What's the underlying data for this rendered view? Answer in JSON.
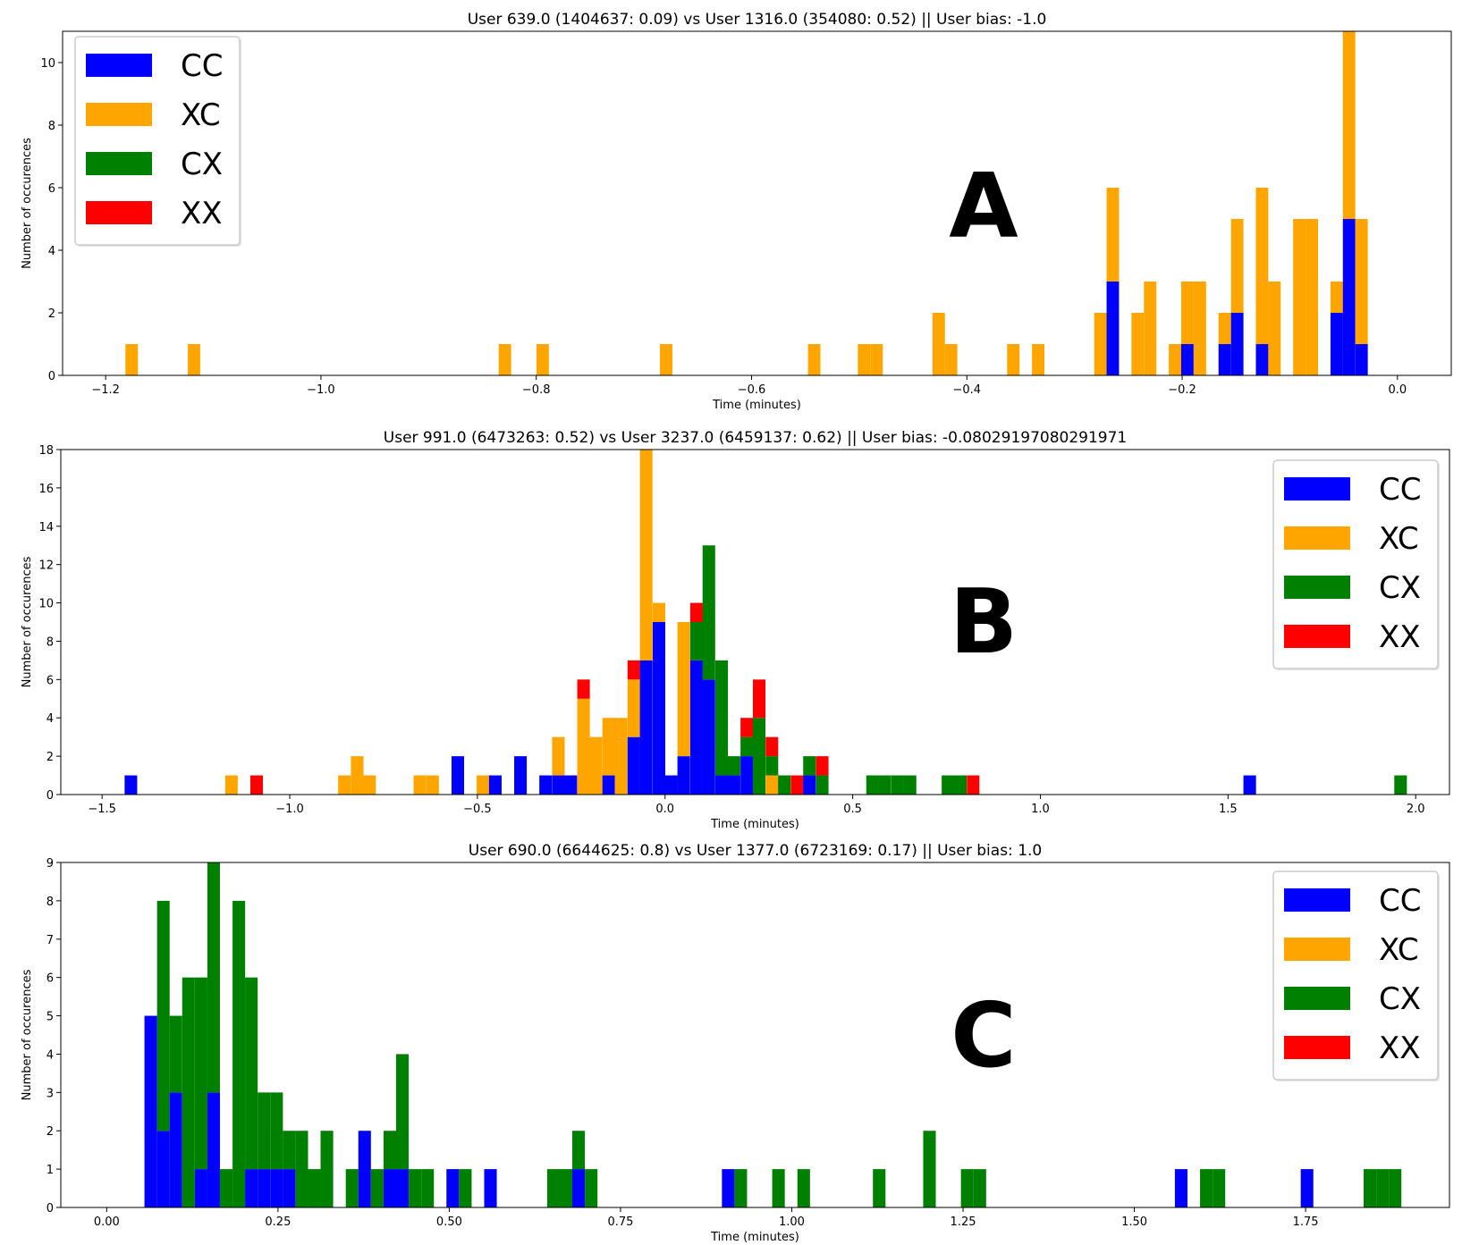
{
  "colors": {
    "CC": "#0000ff",
    "XC": "#ffa500",
    "CX": "#008000",
    "XX": "#ff0000"
  },
  "chart_data": [
    {
      "type": "bar",
      "stacked": true,
      "panel_label": "A",
      "title": "User 639.0 (1404637: 0.09) vs User 1316.0 (354080: 0.52) || User bias: -1.0",
      "xlabel": "Time (minutes)",
      "ylabel": "Number of occurences",
      "xlim": [
        -1.24,
        0.05
      ],
      "ylim": [
        0,
        11
      ],
      "xticks": [
        -1.2,
        -1.0,
        -0.8,
        -0.6,
        -0.4,
        -0.2,
        0.0
      ],
      "xtick_labels": [
        "−1.2",
        "−1.0",
        "−0.8",
        "−0.6",
        "−0.4",
        "−0.2",
        "0.0"
      ],
      "yticks": [
        0,
        2,
        4,
        6,
        8,
        10
      ],
      "ytick_labels": [
        "0",
        "2",
        "4",
        "6",
        "8",
        "10"
      ],
      "legend": {
        "position": "upper left",
        "entries": [
          "CC",
          "XC",
          "CX",
          "XX"
        ]
      },
      "bin_width": 0.01155,
      "series_order": [
        "CC",
        "XC",
        "CX",
        "XX"
      ],
      "bins": [
        {
          "x": -1.1816,
          "CC": 0,
          "XC": 1,
          "CX": 0,
          "XX": 0
        },
        {
          "x": -1.1237,
          "CC": 0,
          "XC": 1,
          "CX": 0,
          "XX": 0
        },
        {
          "x": -0.8349,
          "CC": 0,
          "XC": 1,
          "CX": 0,
          "XX": 0
        },
        {
          "x": -0.7998,
          "CC": 0,
          "XC": 1,
          "CX": 0,
          "XX": 0
        },
        {
          "x": -0.6851,
          "CC": 0,
          "XC": 1,
          "CX": 0,
          "XX": 0
        },
        {
          "x": -0.5476,
          "CC": 0,
          "XC": 1,
          "CX": 0,
          "XX": 0
        },
        {
          "x": -0.5013,
          "CC": 0,
          "XC": 1,
          "CX": 0,
          "XX": 0
        },
        {
          "x": -0.4897,
          "CC": 0,
          "XC": 1,
          "CX": 0,
          "XX": 0
        },
        {
          "x": -0.4319,
          "CC": 0,
          "XC": 2,
          "CX": 0,
          "XX": 0
        },
        {
          "x": -0.4204,
          "CC": 0,
          "XC": 1,
          "CX": 0,
          "XX": 0
        },
        {
          "x": -0.3626,
          "CC": 0,
          "XC": 1,
          "CX": 0,
          "XX": 0
        },
        {
          "x": -0.3395,
          "CC": 0,
          "XC": 1,
          "CX": 0,
          "XX": 0
        },
        {
          "x": -0.2817,
          "CC": 0,
          "XC": 2,
          "CX": 0,
          "XX": 0
        },
        {
          "x": -0.2702,
          "CC": 3,
          "XC": 3,
          "CX": 0,
          "XX": 0
        },
        {
          "x": -0.2471,
          "CC": 0,
          "XC": 2,
          "CX": 0,
          "XX": 0
        },
        {
          "x": -0.2355,
          "CC": 0,
          "XC": 3,
          "CX": 0,
          "XX": 0
        },
        {
          "x": -0.2124,
          "CC": 0,
          "XC": 1,
          "CX": 0,
          "XX": 0
        },
        {
          "x": -0.2009,
          "CC": 1,
          "XC": 2,
          "CX": 0,
          "XX": 0
        },
        {
          "x": -0.1893,
          "CC": 0,
          "XC": 3,
          "CX": 0,
          "XX": 0
        },
        {
          "x": -0.1662,
          "CC": 1,
          "XC": 1,
          "CX": 0,
          "XX": 0
        },
        {
          "x": -0.1546,
          "CC": 2,
          "XC": 3,
          "CX": 0,
          "XX": 0
        },
        {
          "x": -0.1315,
          "CC": 1,
          "XC": 5,
          "CX": 0,
          "XX": 0
        },
        {
          "x": -0.12,
          "CC": 0,
          "XC": 3,
          "CX": 0,
          "XX": 0
        },
        {
          "x": -0.0969,
          "CC": 0,
          "XC": 5,
          "CX": 0,
          "XX": 0
        },
        {
          "x": -0.0853,
          "CC": 0,
          "XC": 5,
          "CX": 0,
          "XX": 0
        },
        {
          "x": -0.0622,
          "CC": 2,
          "XC": 1,
          "CX": 0,
          "XX": 0
        },
        {
          "x": -0.0507,
          "CC": 5,
          "XC": 6,
          "CX": 0,
          "XX": 0
        },
        {
          "x": -0.0391,
          "CC": 1,
          "XC": 4,
          "CX": 0,
          "XX": 0
        }
      ]
    },
    {
      "type": "bar",
      "stacked": true,
      "panel_label": "B",
      "title": "User 991.0 (6473263: 0.52) vs User 3237.0 (6459137: 0.62) || User bias: -0.08029197080291971",
      "xlabel": "Time (minutes)",
      "ylabel": "Number of occurences",
      "xlim": [
        -1.61,
        2.09
      ],
      "ylim": [
        0,
        18
      ],
      "xticks": [
        -1.5,
        -1.0,
        -0.5,
        0.0,
        0.5,
        1.0,
        1.5,
        2.0
      ],
      "xtick_labels": [
        "−1.5",
        "−1.0",
        "−0.5",
        "0.0",
        "0.5",
        "1.0",
        "1.5",
        "2.0"
      ],
      "yticks": [
        0,
        2,
        4,
        6,
        8,
        10,
        12,
        14,
        16,
        18
      ],
      "ytick_labels": [
        "0",
        "2",
        "4",
        "6",
        "8",
        "10",
        "12",
        "14",
        "16",
        "18"
      ],
      "legend": {
        "position": "upper right",
        "entries": [
          "CC",
          "XC",
          "CX",
          "XX"
        ]
      },
      "bin_width": 0.0335,
      "series_order": [
        "CC",
        "XC",
        "CX",
        "XX"
      ],
      "bins": [
        {
          "x": -1.44,
          "CC": 1,
          "XC": 0,
          "CX": 0,
          "XX": 0
        },
        {
          "x": -1.172,
          "CC": 0,
          "XC": 1,
          "CX": 0,
          "XX": 0
        },
        {
          "x": -1.105,
          "CC": 0,
          "XC": 0,
          "CX": 0,
          "XX": 1
        },
        {
          "x": -0.871,
          "CC": 0,
          "XC": 1,
          "CX": 0,
          "XX": 0
        },
        {
          "x": -0.837,
          "CC": 0,
          "XC": 2,
          "CX": 0,
          "XX": 0
        },
        {
          "x": -0.804,
          "CC": 0,
          "XC": 1,
          "CX": 0,
          "XX": 0
        },
        {
          "x": -0.67,
          "CC": 0,
          "XC": 1,
          "CX": 0,
          "XX": 0
        },
        {
          "x": -0.636,
          "CC": 0,
          "XC": 1,
          "CX": 0,
          "XX": 0
        },
        {
          "x": -0.569,
          "CC": 2,
          "XC": 0,
          "CX": 0,
          "XX": 0
        },
        {
          "x": -0.502,
          "CC": 0,
          "XC": 1,
          "CX": 0,
          "XX": 0
        },
        {
          "x": -0.469,
          "CC": 1,
          "XC": 0,
          "CX": 0,
          "XX": 0
        },
        {
          "x": -0.402,
          "CC": 2,
          "XC": 0,
          "CX": 0,
          "XX": 0
        },
        {
          "x": -0.335,
          "CC": 1,
          "XC": 0,
          "CX": 0,
          "XX": 0
        },
        {
          "x": -0.301,
          "CC": 1,
          "XC": 2,
          "CX": 0,
          "XX": 0
        },
        {
          "x": -0.268,
          "CC": 1,
          "XC": 0,
          "CX": 0,
          "XX": 0
        },
        {
          "x": -0.234,
          "CC": 0,
          "XC": 5,
          "CX": 0,
          "XX": 1
        },
        {
          "x": -0.201,
          "CC": 0,
          "XC": 3,
          "CX": 0,
          "XX": 0
        },
        {
          "x": -0.167,
          "CC": 1,
          "XC": 3,
          "CX": 0,
          "XX": 0
        },
        {
          "x": -0.134,
          "CC": 0,
          "XC": 4,
          "CX": 0,
          "XX": 0
        },
        {
          "x": -0.1,
          "CC": 3,
          "XC": 3,
          "CX": 0,
          "XX": 1
        },
        {
          "x": -0.067,
          "CC": 7,
          "XC": 11,
          "CX": 0,
          "XX": 0
        },
        {
          "x": -0.033,
          "CC": 9,
          "XC": 1,
          "CX": 0,
          "XX": 0
        },
        {
          "x": 0.0,
          "CC": 1,
          "XC": 0,
          "CX": 0,
          "XX": 0
        },
        {
          "x": 0.033,
          "CC": 2,
          "XC": 7,
          "CX": 0,
          "XX": 0
        },
        {
          "x": 0.067,
          "CC": 7,
          "XC": 0,
          "CX": 2,
          "XX": 1
        },
        {
          "x": 0.1,
          "CC": 6,
          "XC": 0,
          "CX": 7,
          "XX": 0
        },
        {
          "x": 0.134,
          "CC": 1,
          "XC": 0,
          "CX": 6,
          "XX": 0
        },
        {
          "x": 0.167,
          "CC": 1,
          "XC": 0,
          "CX": 1,
          "XX": 0
        },
        {
          "x": 0.201,
          "CC": 2,
          "XC": 0,
          "CX": 1,
          "XX": 1
        },
        {
          "x": 0.234,
          "CC": 0,
          "XC": 0,
          "CX": 4,
          "XX": 2
        },
        {
          "x": 0.268,
          "CC": 0,
          "XC": 1,
          "CX": 1,
          "XX": 1
        },
        {
          "x": 0.301,
          "CC": 0,
          "XC": 0,
          "CX": 1,
          "XX": 0
        },
        {
          "x": 0.335,
          "CC": 0,
          "XC": 0,
          "CX": 0,
          "XX": 1
        },
        {
          "x": 0.368,
          "CC": 1,
          "XC": 0,
          "CX": 1,
          "XX": 0
        },
        {
          "x": 0.402,
          "CC": 0,
          "XC": 0,
          "CX": 1,
          "XX": 1
        },
        {
          "x": 0.536,
          "CC": 0,
          "XC": 0,
          "CX": 1,
          "XX": 0
        },
        {
          "x": 0.569,
          "CC": 0,
          "XC": 0,
          "CX": 1,
          "XX": 0
        },
        {
          "x": 0.603,
          "CC": 0,
          "XC": 0,
          "CX": 1,
          "XX": 0
        },
        {
          "x": 0.636,
          "CC": 0,
          "XC": 0,
          "CX": 1,
          "XX": 0
        },
        {
          "x": 0.737,
          "CC": 0,
          "XC": 0,
          "CX": 1,
          "XX": 0
        },
        {
          "x": 0.77,
          "CC": 0,
          "XC": 0,
          "CX": 1,
          "XX": 0
        },
        {
          "x": 0.804,
          "CC": 0,
          "XC": 0,
          "CX": 0,
          "XX": 1
        },
        {
          "x": 1.541,
          "CC": 1,
          "XC": 0,
          "CX": 0,
          "XX": 0
        },
        {
          "x": 1.943,
          "CC": 0,
          "XC": 0,
          "CX": 1,
          "XX": 0
        }
      ]
    },
    {
      "type": "bar",
      "stacked": true,
      "panel_label": "C",
      "title": "User 690.0 (6644625: 0.8) vs User 1377.0 (6723169: 0.17) || User bias: 1.0",
      "xlabel": "Time (minutes)",
      "ylabel": "Number of occurences",
      "xlim": [
        -0.067,
        1.96
      ],
      "ylim": [
        0,
        9
      ],
      "xticks": [
        0.0,
        0.25,
        0.5,
        0.75,
        1.0,
        1.25,
        1.5,
        1.75
      ],
      "xtick_labels": [
        "0.00",
        "0.25",
        "0.50",
        "0.75",
        "1.00",
        "1.25",
        "1.50",
        "1.75"
      ],
      "yticks": [
        0,
        1,
        2,
        3,
        4,
        5,
        6,
        7,
        8,
        9
      ],
      "ytick_labels": [
        "0",
        "1",
        "2",
        "3",
        "4",
        "5",
        "6",
        "7",
        "8",
        "9"
      ],
      "legend": {
        "position": "upper right",
        "entries": [
          "CC",
          "XC",
          "CX",
          "XX"
        ]
      },
      "bin_width": 0.01837,
      "series_order": [
        "CC",
        "XC",
        "CX",
        "XX"
      ],
      "bins": [
        {
          "x": 0.0551,
          "CC": 5,
          "XC": 0,
          "CX": 0,
          "XX": 0
        },
        {
          "x": 0.0735,
          "CC": 2,
          "XC": 0,
          "CX": 6,
          "XX": 0
        },
        {
          "x": 0.0918,
          "CC": 3,
          "XC": 0,
          "CX": 2,
          "XX": 0
        },
        {
          "x": 0.1102,
          "CC": 0,
          "XC": 0,
          "CX": 6,
          "XX": 0
        },
        {
          "x": 0.1286,
          "CC": 1,
          "XC": 0,
          "CX": 5,
          "XX": 0
        },
        {
          "x": 0.1469,
          "CC": 3,
          "XC": 0,
          "CX": 6,
          "XX": 0
        },
        {
          "x": 0.1653,
          "CC": 0,
          "XC": 0,
          "CX": 1,
          "XX": 0
        },
        {
          "x": 0.1837,
          "CC": 0,
          "XC": 0,
          "CX": 8,
          "XX": 0
        },
        {
          "x": 0.202,
          "CC": 1,
          "XC": 0,
          "CX": 5,
          "XX": 0
        },
        {
          "x": 0.2204,
          "CC": 1,
          "XC": 0,
          "CX": 2,
          "XX": 0
        },
        {
          "x": 0.2388,
          "CC": 1,
          "XC": 0,
          "CX": 2,
          "XX": 0
        },
        {
          "x": 0.2571,
          "CC": 1,
          "XC": 0,
          "CX": 1,
          "XX": 0
        },
        {
          "x": 0.2755,
          "CC": 0,
          "XC": 0,
          "CX": 2,
          "XX": 0
        },
        {
          "x": 0.2939,
          "CC": 0,
          "XC": 0,
          "CX": 1,
          "XX": 0
        },
        {
          "x": 0.3122,
          "CC": 0,
          "XC": 0,
          "CX": 2,
          "XX": 0
        },
        {
          "x": 0.349,
          "CC": 0,
          "XC": 0,
          "CX": 1,
          "XX": 0
        },
        {
          "x": 0.3673,
          "CC": 2,
          "XC": 0,
          "CX": 0,
          "XX": 0
        },
        {
          "x": 0.3857,
          "CC": 0,
          "XC": 0,
          "CX": 1,
          "XX": 0
        },
        {
          "x": 0.4041,
          "CC": 1,
          "XC": 0,
          "CX": 1,
          "XX": 0
        },
        {
          "x": 0.4224,
          "CC": 1,
          "XC": 0,
          "CX": 3,
          "XX": 0
        },
        {
          "x": 0.4408,
          "CC": 0,
          "XC": 0,
          "CX": 1,
          "XX": 0
        },
        {
          "x": 0.4592,
          "CC": 0,
          "XC": 0,
          "CX": 1,
          "XX": 0
        },
        {
          "x": 0.4959,
          "CC": 1,
          "XC": 0,
          "CX": 0,
          "XX": 0
        },
        {
          "x": 0.5143,
          "CC": 0,
          "XC": 0,
          "CX": 1,
          "XX": 0
        },
        {
          "x": 0.551,
          "CC": 1,
          "XC": 0,
          "CX": 0,
          "XX": 0
        },
        {
          "x": 0.6429,
          "CC": 0,
          "XC": 0,
          "CX": 1,
          "XX": 0
        },
        {
          "x": 0.6612,
          "CC": 0,
          "XC": 0,
          "CX": 1,
          "XX": 0
        },
        {
          "x": 0.6796,
          "CC": 1,
          "XC": 0,
          "CX": 1,
          "XX": 0
        },
        {
          "x": 0.698,
          "CC": 0,
          "XC": 0,
          "CX": 1,
          "XX": 0
        },
        {
          "x": 0.898,
          "CC": 1,
          "XC": 0,
          "CX": 0,
          "XX": 0
        },
        {
          "x": 0.9163,
          "CC": 0,
          "XC": 0,
          "CX": 1,
          "XX": 0
        },
        {
          "x": 0.9714,
          "CC": 0,
          "XC": 0,
          "CX": 1,
          "XX": 0
        },
        {
          "x": 1.0082,
          "CC": 0,
          "XC": 0,
          "CX": 1,
          "XX": 0
        },
        {
          "x": 1.1184,
          "CC": 0,
          "XC": 0,
          "CX": 1,
          "XX": 0
        },
        {
          "x": 1.1918,
          "CC": 0,
          "XC": 0,
          "CX": 2,
          "XX": 0
        },
        {
          "x": 1.2469,
          "CC": 0,
          "XC": 0,
          "CX": 1,
          "XX": 0
        },
        {
          "x": 1.2653,
          "CC": 0,
          "XC": 0,
          "CX": 1,
          "XX": 0
        },
        {
          "x": 1.5592,
          "CC": 1,
          "XC": 0,
          "CX": 0,
          "XX": 0
        },
        {
          "x": 1.5959,
          "CC": 0,
          "XC": 0,
          "CX": 1,
          "XX": 0
        },
        {
          "x": 1.6143,
          "CC": 0,
          "XC": 0,
          "CX": 1,
          "XX": 0
        },
        {
          "x": 1.7429,
          "CC": 1,
          "XC": 0,
          "CX": 0,
          "XX": 0
        },
        {
          "x": 1.8347,
          "CC": 0,
          "XC": 0,
          "CX": 1,
          "XX": 0
        },
        {
          "x": 1.8531,
          "CC": 0,
          "XC": 0,
          "CX": 1,
          "XX": 0
        },
        {
          "x": 1.8714,
          "CC": 0,
          "XC": 0,
          "CX": 1,
          "XX": 0
        }
      ]
    }
  ]
}
